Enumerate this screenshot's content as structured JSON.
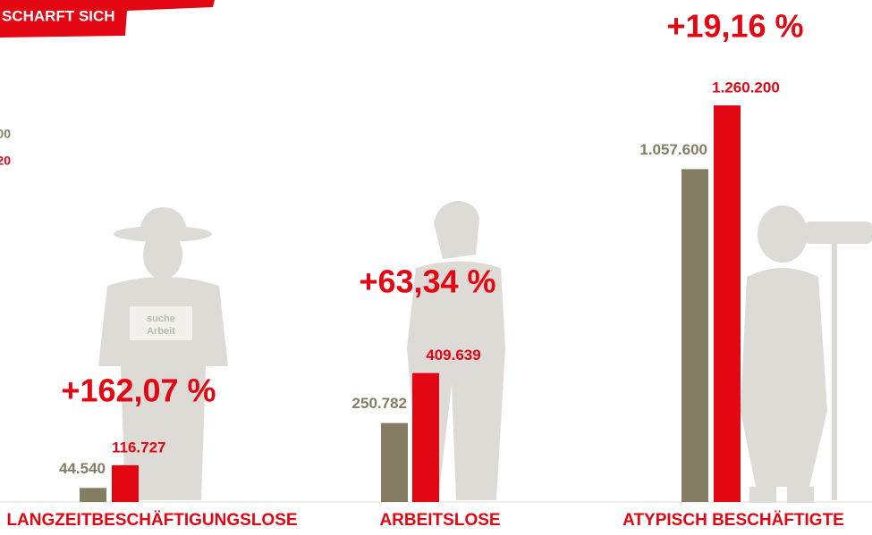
{
  "chart_data": {
    "type": "bar",
    "title": "SCHARFT SICH",
    "categories": [
      "LANGZEITBESCHÄFTIGUNGSLOSE",
      "ARBEITSLOSE",
      "ATYPISCH BESCHÄFTIGTE"
    ],
    "series": [
      {
        "name": "00",
        "color": "#857d63",
        "values": [
          44540,
          250782,
          1057600
        ],
        "value_labels": [
          "44.540",
          "250.782",
          "1.057.600"
        ]
      },
      {
        "name": "20",
        "color": "#e30613",
        "values": [
          116727,
          409639,
          1260200
        ],
        "value_labels": [
          "116.727",
          "409.639",
          "1.260.200"
        ]
      }
    ],
    "annotations": [
      "+162,07 %",
      "+63,34 %",
      "+19,16 %"
    ],
    "sign": [
      "suche",
      "Arbeit"
    ]
  }
}
